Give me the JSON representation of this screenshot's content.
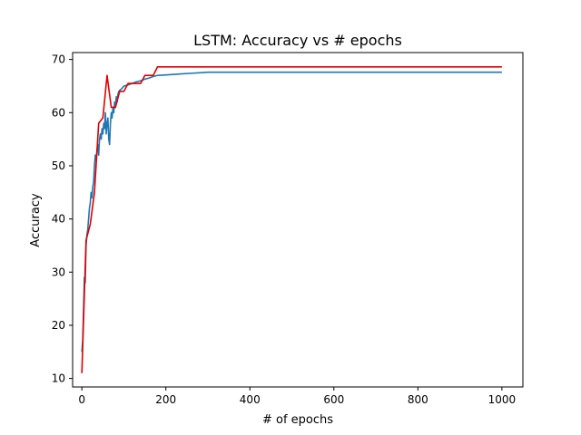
{
  "chart_data": {
    "type": "line",
    "title": "LSTM: Accuracy vs # epochs",
    "xlabel": "# of epochs",
    "ylabel": "Accuracy",
    "xlim": [
      -22,
      1050
    ],
    "ylim": [
      8.4,
      71.3
    ],
    "xticks": [
      0,
      200,
      400,
      600,
      800,
      1000
    ],
    "yticks": [
      10,
      20,
      30,
      40,
      50,
      60,
      70
    ],
    "grid": false,
    "series": [
      {
        "color": "#1f77b4",
        "x": [
          0,
          2,
          4,
          6,
          8,
          10,
          12,
          14,
          16,
          18,
          20,
          22,
          24,
          26,
          28,
          30,
          32,
          34,
          36,
          38,
          40,
          42,
          44,
          46,
          48,
          50,
          52,
          54,
          56,
          58,
          60,
          62,
          64,
          66,
          68,
          70,
          72,
          74,
          76,
          78,
          80,
          82,
          84,
          86,
          88,
          90,
          95,
          100,
          110,
          120,
          130,
          140,
          150,
          160,
          170,
          180,
          200,
          220,
          240,
          260,
          280,
          300,
          400,
          600,
          800,
          1000
        ],
        "values": [
          15,
          17,
          23,
          29,
          28,
          35,
          37,
          38,
          40,
          42,
          43,
          45,
          44,
          46,
          47,
          50,
          52,
          51,
          53,
          54,
          52,
          55,
          56,
          55,
          57,
          56,
          58,
          57,
          60,
          56,
          58,
          59,
          55,
          54,
          58,
          60,
          59,
          61,
          60,
          62,
          61,
          63,
          62,
          63.5,
          64,
          64.2,
          64.5,
          65,
          65.2,
          65.5,
          65.8,
          66,
          66.3,
          66.5,
          66.8,
          67,
          67.1,
          67.2,
          67.3,
          67.4,
          67.5,
          67.6,
          67.6,
          67.6,
          67.6,
          67.6
        ]
      },
      {
        "color": "#e00000",
        "x": [
          0,
          10,
          20,
          30,
          40,
          50,
          60,
          70,
          80,
          90,
          100,
          110,
          120,
          130,
          140,
          150,
          160,
          170,
          180,
          190,
          200,
          300,
          400,
          600,
          800,
          1000
        ],
        "values": [
          11,
          36,
          39,
          45,
          58,
          59,
          67,
          61,
          61,
          64,
          64,
          65.5,
          65.5,
          65.5,
          65.5,
          67,
          67,
          67,
          68.6,
          68.6,
          68.6,
          68.6,
          68.6,
          68.6,
          68.6,
          68.6
        ]
      }
    ]
  }
}
